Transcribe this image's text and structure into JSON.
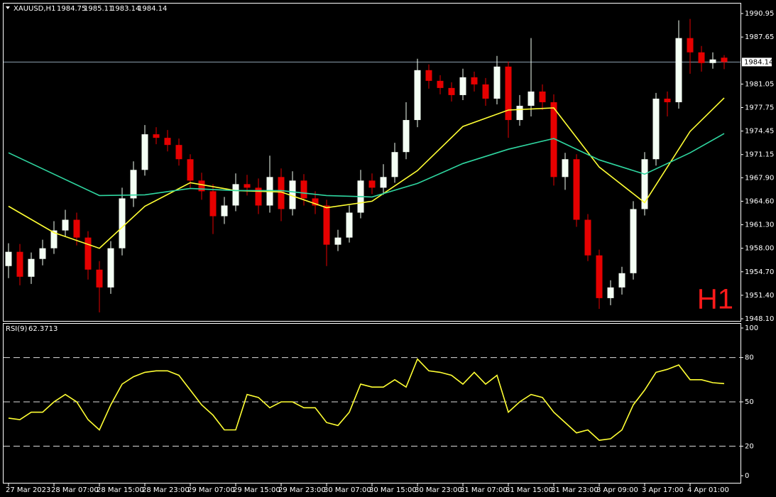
{
  "chart_data": {
    "type": "candlestick",
    "symbol": "XAUUSD,H1",
    "watermark": "H1",
    "watermark_color": "#ff1a1a",
    "up_color": "#f4fff4",
    "down_color": "#e60000",
    "price_line_color": "#8fa3b3",
    "open": [
      1955.5,
      1957.5,
      1954.0,
      1956.5,
      1958.0,
      1960.5,
      1962.0,
      1959.5,
      1955.0,
      1952.5,
      1958.0,
      1965.0,
      1969.0,
      1974.0,
      1973.5,
      1972.5,
      1970.5,
      1967.5,
      1966.0,
      1962.5,
      1964.0,
      1967.0,
      1966.5,
      1964.0,
      1968.0,
      1963.5,
      1967.5,
      1965.0,
      1964.0,
      1958.5,
      1959.5,
      1963.0,
      1967.5,
      1966.5,
      1968.0,
      1971.5,
      1976.0,
      1983.0,
      1981.5,
      1980.5,
      1979.5,
      1982.0,
      1981.0,
      1979.0,
      1983.5,
      1976.0,
      1978.0,
      1980.0,
      1978.5,
      1968.0,
      1970.5,
      1962.0,
      1957.0,
      1951.0,
      1952.5,
      1954.5,
      1963.5,
      1970.5,
      1979.0,
      1978.5,
      1987.5,
      1985.5,
      1984.0,
      1984.75
    ],
    "high": [
      1958.7,
      1958.6,
      1957.4,
      1959.2,
      1961.8,
      1963.4,
      1963.0,
      1960.4,
      1956.2,
      1959.0,
      1966.5,
      1970.2,
      1975.3,
      1975.0,
      1974.6,
      1973.4,
      1971.2,
      1968.6,
      1967.0,
      1965.2,
      1968.5,
      1968.3,
      1967.8,
      1971.0,
      1969.2,
      1968.8,
      1968.4,
      1966.0,
      1964.8,
      1960.6,
      1964.0,
      1969.0,
      1968.5,
      1969.8,
      1972.8,
      1978.5,
      1984.6,
      1983.8,
      1982.3,
      1981.3,
      1983.2,
      1982.8,
      1981.9,
      1985.0,
      1984.2,
      1979.5,
      1987.5,
      1981.0,
      1979.6,
      1971.4,
      1971.2,
      1962.8,
      1957.8,
      1953.5,
      1955.4,
      1964.6,
      1971.5,
      1979.8,
      1980.0,
      1990.0,
      1990.2,
      1986.4,
      1985.5,
      1985.11
    ],
    "low": [
      1953.8,
      1952.8,
      1953.0,
      1955.6,
      1957.2,
      1959.6,
      1958.4,
      1953.6,
      1949.0,
      1951.6,
      1957.0,
      1963.8,
      1968.2,
      1972.6,
      1971.6,
      1969.6,
      1966.4,
      1964.8,
      1960.0,
      1961.4,
      1963.2,
      1965.4,
      1962.8,
      1963.0,
      1961.8,
      1962.6,
      1964.0,
      1962.8,
      1955.5,
      1957.6,
      1958.8,
      1962.2,
      1965.6,
      1965.5,
      1967.2,
      1970.5,
      1975.0,
      1980.4,
      1979.6,
      1978.6,
      1978.8,
      1980.0,
      1978.0,
      1978.2,
      1973.5,
      1975.2,
      1976.5,
      1977.4,
      1966.8,
      1966.2,
      1961.0,
      1956.2,
      1949.5,
      1950.0,
      1951.5,
      1953.6,
      1962.6,
      1969.6,
      1976.5,
      1977.6,
      1982.5,
      1982.8,
      1983.2,
      1983.14
    ],
    "close": [
      1957.5,
      1954.0,
      1956.5,
      1958.0,
      1960.5,
      1962.0,
      1959.5,
      1955.0,
      1952.5,
      1958.0,
      1965.0,
      1969.0,
      1974.0,
      1973.5,
      1972.5,
      1970.5,
      1967.5,
      1966.0,
      1962.5,
      1964.0,
      1967.0,
      1966.5,
      1964.0,
      1968.0,
      1963.5,
      1967.5,
      1965.0,
      1964.0,
      1958.5,
      1959.5,
      1963.0,
      1967.5,
      1966.5,
      1968.0,
      1971.5,
      1976.0,
      1983.0,
      1981.5,
      1980.5,
      1979.5,
      1982.0,
      1981.0,
      1979.0,
      1983.5,
      1976.0,
      1978.0,
      1980.0,
      1978.5,
      1968.0,
      1970.5,
      1962.0,
      1957.0,
      1951.0,
      1952.5,
      1954.5,
      1963.5,
      1970.5,
      1979.0,
      1978.5,
      1987.5,
      1985.5,
      1984.0,
      1984.5,
      1984.14
    ],
    "series": [
      {
        "color": "#ffff33",
        "x": [
          0,
          4,
          8,
          12,
          16,
          20,
          24,
          28,
          32,
          36,
          40,
          44,
          48,
          52,
          56,
          60,
          63
        ],
        "values": [
          1963.9,
          1960.2,
          1958.0,
          1963.9,
          1967.2,
          1966.1,
          1965.9,
          1963.7,
          1964.6,
          1968.9,
          1975.1,
          1977.4,
          1977.7,
          1969.4,
          1964.4,
          1974.4,
          1979.1
        ]
      },
      {
        "color": "#2fd6a0",
        "x": [
          0,
          4,
          8,
          12,
          16,
          20,
          24,
          28,
          32,
          36,
          40,
          44,
          48,
          52,
          56,
          60,
          63
        ],
        "values": [
          1971.4,
          1968.4,
          1965.4,
          1965.5,
          1966.4,
          1966.1,
          1966.1,
          1965.4,
          1965.2,
          1967.1,
          1969.9,
          1971.9,
          1973.4,
          1970.4,
          1968.4,
          1971.4,
          1974.1
        ]
      }
    ],
    "xlim": [
      -0.5,
      63.5
    ],
    "xticks": [
      {
        "value": 0,
        "label": "27 Mar 2023"
      },
      {
        "value": 4,
        "label": "28 Mar 07:00"
      },
      {
        "value": 8,
        "label": "28 Mar 15:00"
      },
      {
        "value": 12,
        "label": "28 Mar 23:00"
      },
      {
        "value": 16,
        "label": "29 Mar 07:00"
      },
      {
        "value": 20,
        "label": "29 Mar 15:00"
      },
      {
        "value": 24,
        "label": "29 Mar 23:00"
      },
      {
        "value": 28,
        "label": "30 Mar 07:00"
      },
      {
        "value": 32,
        "label": "30 Mar 15:00"
      },
      {
        "value": 36,
        "label": "30 Mar 23:00"
      },
      {
        "value": 40,
        "label": "31 Mar 07:00"
      },
      {
        "value": 44,
        "label": "31 Mar 15:00"
      },
      {
        "value": 48,
        "label": "31 Mar 23:00"
      },
      {
        "value": 52,
        "label": "3 Apr 09:00"
      },
      {
        "value": 56,
        "label": "3 Apr 17:00"
      },
      {
        "value": 60,
        "label": "4 Apr 01:00"
      }
    ],
    "ylim": [
      1947.8,
      1992.35
    ],
    "yticks": [
      1990.95,
      1987.65,
      1981.05,
      1977.75,
      1974.45,
      1971.15,
      {
        "value": 1967.9,
        "label": "1967.90"
      },
      {
        "value": 1964.6,
        "label": "1964.60"
      },
      {
        "value": 1961.3,
        "label": "1961.30"
      },
      {
        "value": 1958.0,
        "label": "1958.00"
      },
      {
        "value": 1954.7,
        "label": "1954.70"
      },
      {
        "value": 1951.4,
        "label": "1951.40"
      },
      {
        "value": 1948.1,
        "label": "1948.10"
      }
    ],
    "indicator": {
      "type": "line",
      "label": "RSI(9)",
      "color": "#ffff33",
      "values": [
        39,
        38,
        43,
        43,
        50,
        55,
        50,
        38,
        31,
        48,
        62,
        67,
        70,
        71,
        71,
        68,
        58,
        48,
        41,
        31,
        31,
        55,
        53,
        46,
        50,
        50,
        46,
        46,
        36,
        34,
        43,
        62,
        60,
        60,
        65,
        60,
        79,
        71,
        70,
        68,
        62,
        70,
        62,
        68,
        43,
        50,
        55,
        53,
        43,
        36,
        29,
        31,
        24,
        25,
        31,
        48,
        58,
        70,
        72,
        75,
        65,
        65,
        63,
        62.3713
      ],
      "ylim": [
        0,
        100
      ],
      "yticks": [
        0,
        20,
        50,
        80,
        100
      ],
      "levels": [
        20,
        50,
        80
      ]
    }
  }
}
